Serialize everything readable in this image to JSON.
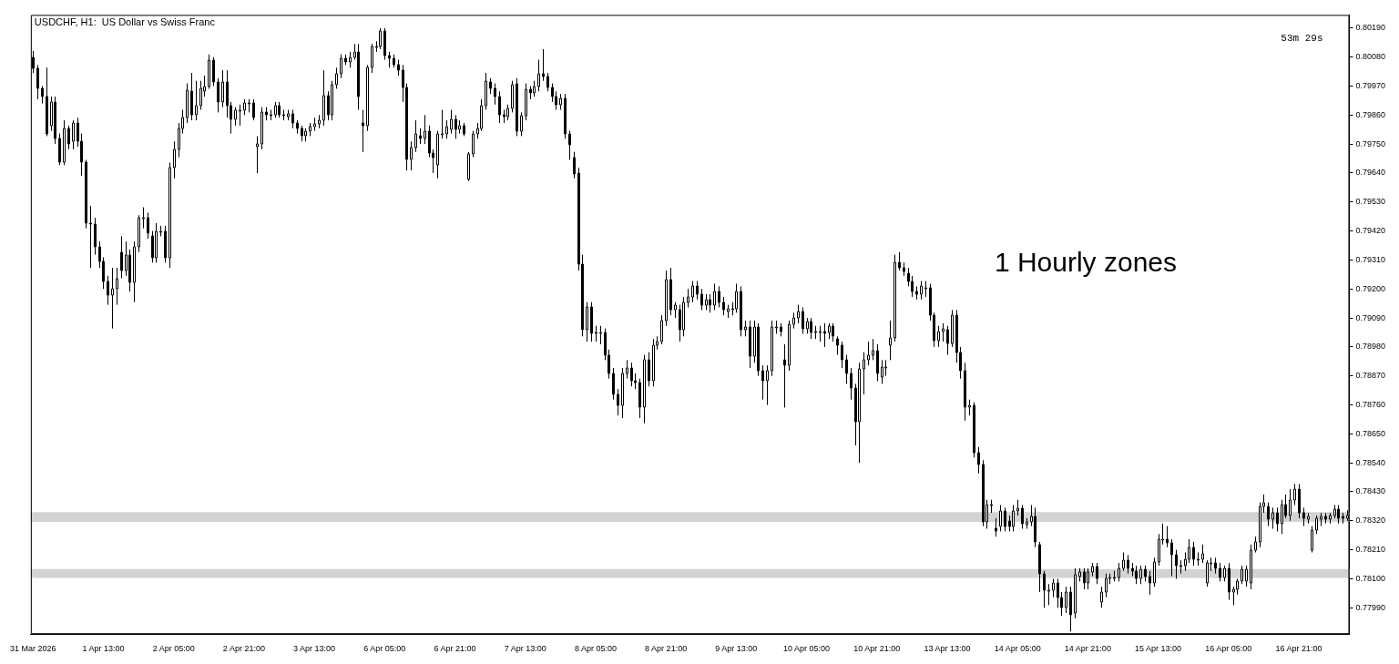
{
  "chart_data": {
    "type": "candlestick",
    "title": "USDCHF, H1:  US Dollar vs Swiss Franc",
    "annotations": [
      "1 Hourly zones",
      "53m 29s"
    ],
    "categories": [
      "31 Mar 2026",
      null,
      null,
      null,
      null,
      null,
      null,
      null,
      null,
      null,
      null,
      null,
      null,
      null,
      null,
      null,
      "1 Apr 13:00",
      null,
      null,
      null,
      null,
      null,
      null,
      null,
      null,
      null,
      null,
      null,
      null,
      null,
      null,
      null,
      "2 Apr 05:00",
      null,
      null,
      null,
      null,
      null,
      null,
      null,
      null,
      null,
      null,
      null,
      null,
      null,
      null,
      null,
      "2 Apr 21:00",
      null,
      null,
      null,
      null,
      null,
      null,
      null,
      null,
      null,
      null,
      null,
      null,
      null,
      null,
      null,
      "3 Apr 13:00",
      null,
      null,
      null,
      null,
      null,
      null,
      null,
      null,
      null,
      null,
      null,
      null,
      null,
      null,
      null,
      "6 Apr 05:00",
      null,
      null,
      null,
      null,
      null,
      null,
      null,
      null,
      null,
      null,
      null,
      null,
      null,
      null,
      null,
      "6 Apr 21:00",
      null,
      null,
      null,
      null,
      null,
      null,
      null,
      null,
      null,
      null,
      null,
      null,
      null,
      null,
      null,
      "7 Apr 13:00",
      null,
      null,
      null,
      null,
      null,
      null,
      null,
      null,
      null,
      null,
      null,
      null,
      null,
      null,
      null,
      "8 Apr 05:00",
      null,
      null,
      null,
      null,
      null,
      null,
      null,
      null,
      null,
      null,
      null,
      null,
      null,
      null,
      null,
      "8 Apr 21:00",
      null,
      null,
      null,
      null,
      null,
      null,
      null,
      null,
      null,
      null,
      null,
      null,
      null,
      null,
      null,
      "9 Apr 13:00",
      null,
      null,
      null,
      null,
      null,
      null,
      null,
      null,
      null,
      null,
      null,
      null,
      null,
      null,
      null,
      "10 Apr 05:00",
      null,
      null,
      null,
      null,
      null,
      null,
      null,
      null,
      null,
      null,
      null,
      null,
      null,
      null,
      null,
      "10 Apr 21:00",
      null,
      null,
      null,
      null,
      null,
      null,
      null,
      null,
      null,
      null,
      null,
      null,
      null,
      null,
      null,
      "13 Apr 13:00",
      null,
      null,
      null,
      null,
      null,
      null,
      null,
      null,
      null,
      null,
      null,
      null,
      null,
      null,
      null,
      "14 Apr 05:00",
      null,
      null,
      null,
      null,
      null,
      null,
      null,
      null,
      null,
      null,
      null,
      null,
      null,
      null,
      null,
      "14 Apr 21:00",
      null,
      null,
      null,
      null,
      null,
      null,
      null,
      null,
      null,
      null,
      null,
      null,
      null,
      null,
      null,
      "15 Apr 13:00",
      null,
      null,
      null,
      null,
      null,
      null,
      null,
      null,
      null,
      null,
      null,
      null,
      null,
      null,
      null,
      "16 Apr 05:00",
      null,
      null,
      null,
      null,
      null,
      null,
      null,
      null,
      null,
      null,
      null,
      null,
      null,
      null,
      null,
      "16 Apr 21:00",
      null,
      null,
      null,
      null,
      null,
      null,
      null,
      null,
      null,
      null,
      null
    ],
    "ohlc": [
      [
        0.8008,
        0.80103,
        0.8002,
        0.80037
      ],
      [
        0.80037,
        0.8005,
        0.7992,
        0.7996
      ],
      [
        0.7996,
        0.7997,
        0.79904,
        0.7993
      ],
      [
        0.7993,
        0.8004,
        0.7978,
        0.7979
      ],
      [
        0.7982,
        0.7993,
        0.798,
        0.7991
      ],
      [
        0.7991,
        0.7993,
        0.7975,
        0.7977
      ],
      [
        0.7977,
        0.7979,
        0.7967,
        0.7968
      ],
      [
        0.7968,
        0.7984,
        0.7967,
        0.7981
      ],
      [
        0.7981,
        0.7982,
        0.7973,
        0.7975
      ],
      [
        0.7976,
        0.7984,
        0.7973,
        0.7983
      ],
      [
        0.7983,
        0.7985,
        0.7974,
        0.7976
      ],
      [
        0.7976,
        0.7979,
        0.7963,
        0.7968
      ],
      [
        0.7968,
        0.7969,
        0.7943,
        0.7945
      ],
      [
        0.7945,
        0.79515,
        0.7928,
        0.79445
      ],
      [
        0.79445,
        0.7947,
        0.7933,
        0.7936
      ],
      [
        0.7936,
        0.7938,
        0.7928,
        0.79305
      ],
      [
        0.79305,
        0.7932,
        0.792,
        0.7923
      ],
      [
        0.7923,
        0.7925,
        0.7914,
        0.79175
      ],
      [
        0.79175,
        0.7928,
        0.7905,
        0.792
      ],
      [
        0.792,
        0.7928,
        0.7914,
        0.7924
      ],
      [
        0.7934,
        0.794,
        0.7924,
        0.7927
      ],
      [
        0.7927,
        0.7938,
        0.7925,
        0.7933
      ],
      [
        0.7933,
        0.7935,
        0.7919,
        0.79225
      ],
      [
        0.79225,
        0.7938,
        0.7915,
        0.7936
      ],
      [
        0.7936,
        0.7948,
        0.7934,
        0.7947
      ],
      [
        0.7947,
        0.7951,
        0.7943,
        0.7947
      ],
      [
        0.7947,
        0.7949,
        0.7939,
        0.7941
      ],
      [
        0.794,
        0.7942,
        0.793,
        0.7932
      ],
      [
        0.7932,
        0.7945,
        0.793,
        0.7942
      ],
      [
        0.7942,
        0.7944,
        0.794,
        0.7942
      ],
      [
        0.7942,
        0.7944,
        0.793,
        0.7932
      ],
      [
        0.7932,
        0.7968,
        0.7928,
        0.7966
      ],
      [
        0.7966,
        0.7976,
        0.7962,
        0.7973
      ],
      [
        0.7973,
        0.7983,
        0.797,
        0.7981
      ],
      [
        0.7981,
        0.7988,
        0.7979,
        0.7985
      ],
      [
        0.7985,
        0.7998,
        0.7983,
        0.79955
      ],
      [
        0.7995,
        0.8002,
        0.7984,
        0.7986
      ],
      [
        0.7986,
        0.7999,
        0.7984,
        0.79895
      ],
      [
        0.79895,
        0.7999,
        0.7988,
        0.7996
      ],
      [
        0.7995,
        0.8001,
        0.7993,
        0.7997
      ],
      [
        0.7997,
        0.8009,
        0.7996,
        0.80068
      ],
      [
        0.80068,
        0.8008,
        0.7997,
        0.79985
      ],
      [
        0.79985,
        0.8,
        0.7987,
        0.7991
      ],
      [
        0.7991,
        0.8003,
        0.7989,
        0.79985
      ],
      [
        0.79985,
        0.8003,
        0.7985,
        0.79895
      ],
      [
        0.79895,
        0.7991,
        0.7979,
        0.79845
      ],
      [
        0.79845,
        0.7989,
        0.7982,
        0.7988
      ],
      [
        0.7988,
        0.799,
        0.7982,
        0.7988
      ],
      [
        0.7988,
        0.7992,
        0.7986,
        0.79905
      ],
      [
        0.79905,
        0.7992,
        0.7987,
        0.79905
      ],
      [
        0.79905,
        0.7992,
        0.7984,
        0.7985
      ],
      [
        0.7974,
        0.7978,
        0.7964,
        0.7975
      ],
      [
        0.7975,
        0.7989,
        0.7973,
        0.7987
      ],
      [
        0.7987,
        0.7989,
        0.7984,
        0.7986
      ],
      [
        0.7986,
        0.7988,
        0.7984,
        0.7986
      ],
      [
        0.7986,
        0.7991,
        0.7985,
        0.79895
      ],
      [
        0.79895,
        0.7991,
        0.7985,
        0.7986
      ],
      [
        0.7986,
        0.7988,
        0.7984,
        0.7986
      ],
      [
        0.79855,
        0.7988,
        0.7984,
        0.79865
      ],
      [
        0.79865,
        0.7988,
        0.7981,
        0.7983
      ],
      [
        0.7983,
        0.7984,
        0.7979,
        0.7981
      ],
      [
        0.7981,
        0.7982,
        0.7976,
        0.7978
      ],
      [
        0.7978,
        0.7981,
        0.7976,
        0.798
      ],
      [
        0.798,
        0.7983,
        0.7978,
        0.79815
      ],
      [
        0.79815,
        0.7985,
        0.798,
        0.79825
      ],
      [
        0.79825,
        0.7986,
        0.7981,
        0.7984
      ],
      [
        0.7984,
        0.8003,
        0.7982,
        0.79935
      ],
      [
        0.79935,
        0.7995,
        0.7984,
        0.7986
      ],
      [
        0.7986,
        0.7999,
        0.7984,
        0.79975
      ],
      [
        0.79975,
        0.8004,
        0.7996,
        0.80015
      ],
      [
        0.80015,
        0.8009,
        0.8,
        0.80075
      ],
      [
        0.80075,
        0.8009,
        0.8005,
        0.8006
      ],
      [
        0.8006,
        0.801,
        0.8004,
        0.8008
      ],
      [
        0.8008,
        0.8013,
        0.8007,
        0.801
      ],
      [
        0.801,
        0.8013,
        0.7988,
        0.7993
      ],
      [
        0.7983,
        0.7988,
        0.7972,
        0.7982
      ],
      [
        0.7982,
        0.8005,
        0.798,
        0.8004
      ],
      [
        0.8004,
        0.8013,
        0.8002,
        0.8012
      ],
      [
        0.8012,
        0.8014,
        0.801,
        0.8012
      ],
      [
        0.8012,
        0.8019,
        0.8011,
        0.8018
      ],
      [
        0.8018,
        0.8019,
        0.8007,
        0.80087
      ],
      [
        0.80087,
        0.801,
        0.8004,
        0.80075
      ],
      [
        0.80075,
        0.8009,
        0.8004,
        0.80052
      ],
      [
        0.80052,
        0.8007,
        0.8001,
        0.8003
      ],
      [
        0.8003,
        0.8005,
        0.7991,
        0.79965
      ],
      [
        0.79965,
        0.7998,
        0.7965,
        0.79693
      ],
      [
        0.79693,
        0.7976,
        0.7965,
        0.79737
      ],
      [
        0.79737,
        0.7984,
        0.7972,
        0.79787
      ],
      [
        0.7978,
        0.7981,
        0.7975,
        0.7977
      ],
      [
        0.7977,
        0.7986,
        0.7975,
        0.798
      ],
      [
        0.798,
        0.7982,
        0.797,
        0.79717
      ],
      [
        0.79717,
        0.7973,
        0.7964,
        0.797
      ],
      [
        0.7967,
        0.798,
        0.7962,
        0.7979
      ],
      [
        0.7979,
        0.7988,
        0.7977,
        0.7979
      ],
      [
        0.7979,
        0.7984,
        0.7977,
        0.79815
      ],
      [
        0.79805,
        0.7988,
        0.7979,
        0.79845
      ],
      [
        0.79845,
        0.7986,
        0.7977,
        0.79805
      ],
      [
        0.79805,
        0.7984,
        0.7979,
        0.7982
      ],
      [
        0.7982,
        0.7983,
        0.7978,
        0.7979
      ],
      [
        0.79616,
        0.7972,
        0.7961,
        0.79714
      ],
      [
        0.79714,
        0.798,
        0.797,
        0.7979
      ],
      [
        0.7979,
        0.7983,
        0.7977,
        0.7981
      ],
      [
        0.7981,
        0.7992,
        0.798,
        0.79894
      ],
      [
        0.79894,
        0.8002,
        0.7988,
        0.7999
      ],
      [
        0.79985,
        0.8,
        0.7994,
        0.7996
      ],
      [
        0.7996,
        0.7998,
        0.799,
        0.7993
      ],
      [
        0.7993,
        0.7995,
        0.7983,
        0.7986
      ],
      [
        0.7986,
        0.7988,
        0.7983,
        0.79855
      ],
      [
        0.79855,
        0.799,
        0.7984,
        0.79885
      ],
      [
        0.79885,
        0.7999,
        0.7987,
        0.79975
      ],
      [
        0.7998,
        0.8,
        0.7978,
        0.798
      ],
      [
        0.798,
        0.7987,
        0.7978,
        0.79857
      ],
      [
        0.79857,
        0.7998,
        0.7984,
        0.79957
      ],
      [
        0.79957,
        0.7997,
        0.7992,
        0.79945
      ],
      [
        0.79945,
        0.7999,
        0.7993,
        0.7997
      ],
      [
        0.7997,
        0.8007,
        0.7995,
        0.80017
      ],
      [
        0.80017,
        0.8011,
        0.7999,
        0.80005
      ],
      [
        0.80005,
        0.8002,
        0.7995,
        0.79965
      ],
      [
        0.79965,
        0.7998,
        0.7991,
        0.7993
      ],
      [
        0.7993,
        0.7995,
        0.7988,
        0.799
      ],
      [
        0.799,
        0.7994,
        0.7988,
        0.79925
      ],
      [
        0.79925,
        0.7994,
        0.7977,
        0.7979
      ],
      [
        0.7979,
        0.798,
        0.7969,
        0.79747
      ],
      [
        0.797,
        0.7972,
        0.7962,
        0.79635
      ],
      [
        0.7964,
        0.7966,
        0.7927,
        0.79295
      ],
      [
        0.79295,
        0.7933,
        0.7902,
        0.79045
      ],
      [
        0.79045,
        0.7915,
        0.79,
        0.7913
      ],
      [
        0.7913,
        0.7915,
        0.79,
        0.7903
      ],
      [
        0.7903,
        0.7906,
        0.79,
        0.79035
      ],
      [
        0.79035,
        0.7906,
        0.7899,
        0.79035
      ],
      [
        0.79035,
        0.7905,
        0.7893,
        0.7895
      ],
      [
        0.7895,
        0.7897,
        0.7886,
        0.7888
      ],
      [
        0.7888,
        0.789,
        0.7878,
        0.788
      ],
      [
        0.788,
        0.7882,
        0.7872,
        0.7876
      ],
      [
        0.7876,
        0.789,
        0.7871,
        0.7888
      ],
      [
        0.7888,
        0.7893,
        0.7886,
        0.789
      ],
      [
        0.789,
        0.7892,
        0.7883,
        0.7885
      ],
      [
        0.7885,
        0.7888,
        0.7882,
        0.78845
      ],
      [
        0.78845,
        0.7886,
        0.7871,
        0.7875
      ],
      [
        0.7875,
        0.7895,
        0.7869,
        0.7893
      ],
      [
        0.7893,
        0.7896,
        0.7883,
        0.7885
      ],
      [
        0.7885,
        0.7901,
        0.7883,
        0.78985
      ],
      [
        0.78985,
        0.7902,
        0.7897,
        0.79
      ],
      [
        0.79,
        0.791,
        0.7899,
        0.7908
      ],
      [
        0.7908,
        0.7927,
        0.7906,
        0.79235
      ],
      [
        0.79235,
        0.7928,
        0.791,
        0.7912
      ],
      [
        0.7912,
        0.7915,
        0.7909,
        0.7914
      ],
      [
        0.7912,
        0.7914,
        0.79,
        0.79045
      ],
      [
        0.79045,
        0.7917,
        0.7902,
        0.7915
      ],
      [
        0.7915,
        0.792,
        0.7913,
        0.7917
      ],
      [
        0.7917,
        0.7923,
        0.7915,
        0.7921
      ],
      [
        0.7921,
        0.7923,
        0.7916,
        0.7918
      ],
      [
        0.7918,
        0.792,
        0.7912,
        0.7914
      ],
      [
        0.7914,
        0.7918,
        0.7912,
        0.7916
      ],
      [
        0.7916,
        0.7918,
        0.7911,
        0.7914
      ],
      [
        0.7914,
        0.7922,
        0.7912,
        0.7919
      ],
      [
        0.7919,
        0.7921,
        0.7913,
        0.7915
      ],
      [
        0.7915,
        0.7917,
        0.791,
        0.7912
      ],
      [
        0.79115,
        0.7914,
        0.7909,
        0.79125
      ],
      [
        0.79125,
        0.7915,
        0.791,
        0.79125
      ],
      [
        0.79125,
        0.7922,
        0.7911,
        0.7919
      ],
      [
        0.7919,
        0.7921,
        0.7902,
        0.79045
      ],
      [
        0.79045,
        0.7908,
        0.7902,
        0.79055
      ],
      [
        0.79055,
        0.7908,
        0.789,
        0.78945
      ],
      [
        0.78945,
        0.7908,
        0.7892,
        0.79055
      ],
      [
        0.79055,
        0.7907,
        0.7887,
        0.7889
      ],
      [
        0.7889,
        0.7891,
        0.7878,
        0.7885
      ],
      [
        0.7885,
        0.7891,
        0.7876,
        0.7889
      ],
      [
        0.7889,
        0.7908,
        0.7887,
        0.79055
      ],
      [
        0.79055,
        0.7908,
        0.7903,
        0.79055
      ],
      [
        0.79055,
        0.7907,
        0.7902,
        0.7904
      ],
      [
        0.7893,
        0.7899,
        0.7875,
        0.7891
      ],
      [
        0.7891,
        0.7908,
        0.7889,
        0.79065
      ],
      [
        0.79065,
        0.7911,
        0.7905,
        0.7909
      ],
      [
        0.7909,
        0.7914,
        0.7907,
        0.79115
      ],
      [
        0.79115,
        0.7913,
        0.7903,
        0.7905
      ],
      [
        0.7905,
        0.7909,
        0.7903,
        0.79075
      ],
      [
        0.79075,
        0.7909,
        0.7901,
        0.79035
      ],
      [
        0.79035,
        0.7906,
        0.7901,
        0.7904
      ],
      [
        0.7904,
        0.7906,
        0.79,
        0.7904
      ],
      [
        0.7904,
        0.7907,
        0.7898,
        0.7903
      ],
      [
        0.79035,
        0.7907,
        0.7901,
        0.7906
      ],
      [
        0.7906,
        0.7907,
        0.79,
        0.7902
      ],
      [
        0.7901,
        0.7902,
        0.7895,
        0.78985
      ],
      [
        0.78985,
        0.79,
        0.789,
        0.7893
      ],
      [
        0.7893,
        0.7895,
        0.7884,
        0.7888
      ],
      [
        0.7888,
        0.789,
        0.7878,
        0.78825
      ],
      [
        0.78825,
        0.7884,
        0.78606,
        0.78695
      ],
      [
        0.78695,
        0.7892,
        0.7854,
        0.78895
      ],
      [
        0.78895,
        0.7896,
        0.788,
        0.7893
      ],
      [
        0.7893,
        0.79,
        0.7891,
        0.7895
      ],
      [
        0.7895,
        0.7901,
        0.7893,
        0.78965
      ],
      [
        0.78965,
        0.7899,
        0.7885,
        0.7888
      ],
      [
        0.78865,
        0.7893,
        0.7884,
        0.78905
      ],
      [
        0.78905,
        0.7893,
        0.7887,
        0.78905
      ],
      [
        0.78985,
        0.7908,
        0.7893,
        0.79015
      ],
      [
        0.79015,
        0.7933,
        0.79,
        0.793
      ],
      [
        0.793,
        0.7934,
        0.7927,
        0.7928
      ],
      [
        0.7928,
        0.793,
        0.7925,
        0.79265
      ],
      [
        0.7926,
        0.7928,
        0.7921,
        0.7923
      ],
      [
        0.7923,
        0.7925,
        0.7917,
        0.7919
      ],
      [
        0.7919,
        0.7921,
        0.7916,
        0.7918
      ],
      [
        0.7918,
        0.7923,
        0.7916,
        0.7921
      ],
      [
        0.79205,
        0.7923,
        0.7917,
        0.79205
      ],
      [
        0.79205,
        0.7922,
        0.7908,
        0.791
      ],
      [
        0.791,
        0.7911,
        0.7898,
        0.79005
      ],
      [
        0.79005,
        0.7906,
        0.7898,
        0.7904
      ],
      [
        0.7904,
        0.7907,
        0.79,
        0.7905
      ],
      [
        0.79045,
        0.7906,
        0.7895,
        0.78995
      ],
      [
        0.78995,
        0.7912,
        0.7898,
        0.791
      ],
      [
        0.791,
        0.7912,
        0.7892,
        0.7896
      ],
      [
        0.7896,
        0.7898,
        0.7886,
        0.7889
      ],
      [
        0.7889,
        0.7892,
        0.787,
        0.7875
      ],
      [
        0.7875,
        0.7878,
        0.7872,
        0.7876
      ],
      [
        0.7876,
        0.7877,
        0.7856,
        0.7858
      ],
      [
        0.7858,
        0.786,
        0.785,
        0.78535
      ],
      [
        0.78535,
        0.7855,
        0.783,
        0.78316
      ],
      [
        0.78316,
        0.784,
        0.7829,
        0.7838
      ],
      [
        0.7838,
        0.784,
        0.7835,
        0.7838
      ],
      [
        0.7829,
        0.7833,
        0.7826,
        0.7828
      ],
      [
        0.783,
        0.7838,
        0.7828,
        0.78357
      ],
      [
        0.78357,
        0.7837,
        0.7828,
        0.783
      ],
      [
        0.7832,
        0.7834,
        0.7828,
        0.783
      ],
      [
        0.783,
        0.7838,
        0.7828,
        0.78357
      ],
      [
        0.78357,
        0.784,
        0.7834,
        0.78367
      ],
      [
        0.78367,
        0.7838,
        0.7829,
        0.7831
      ],
      [
        0.78305,
        0.7833,
        0.7829,
        0.78315
      ],
      [
        0.78315,
        0.7838,
        0.783,
        0.78335
      ],
      [
        0.78335,
        0.7837,
        0.7822,
        0.7824
      ],
      [
        0.7823,
        0.7824,
        0.7805,
        0.7812
      ],
      [
        0.7812,
        0.7813,
        0.7799,
        0.78055
      ],
      [
        0.78055,
        0.7808,
        0.78,
        0.78055
      ],
      [
        0.78055,
        0.781,
        0.7803,
        0.78085
      ],
      [
        0.78085,
        0.781,
        0.7799,
        0.7803
      ],
      [
        0.7803,
        0.7805,
        0.7796,
        0.7799
      ],
      [
        0.7799,
        0.7807,
        0.7797,
        0.7805
      ],
      [
        0.7805,
        0.7807,
        0.779,
        0.77965
      ],
      [
        0.7797,
        0.7814,
        0.7795,
        0.78115
      ],
      [
        0.7811,
        0.7814,
        0.7809,
        0.78125
      ],
      [
        0.78125,
        0.7814,
        0.7806,
        0.78085
      ],
      [
        0.78085,
        0.7814,
        0.7806,
        0.78125
      ],
      [
        0.78125,
        0.7816,
        0.7811,
        0.78145
      ],
      [
        0.78145,
        0.7816,
        0.7808,
        0.781
      ],
      [
        0.7801,
        0.7807,
        0.7799,
        0.7805
      ],
      [
        0.7805,
        0.7812,
        0.7803,
        0.781
      ],
      [
        0.781,
        0.7812,
        0.7808,
        0.78105
      ],
      [
        0.78105,
        0.7813,
        0.7809,
        0.78105
      ],
      [
        0.78105,
        0.7816,
        0.7809,
        0.7814
      ],
      [
        0.7814,
        0.782,
        0.7813,
        0.7817
      ],
      [
        0.7817,
        0.7819,
        0.7812,
        0.7814
      ],
      [
        0.7814,
        0.7816,
        0.7811,
        0.7813
      ],
      [
        0.7813,
        0.7815,
        0.7808,
        0.781
      ],
      [
        0.781,
        0.7815,
        0.7808,
        0.78135
      ],
      [
        0.78135,
        0.7815,
        0.7809,
        0.7811
      ],
      [
        0.7811,
        0.7813,
        0.7804,
        0.78085
      ],
      [
        0.78085,
        0.7818,
        0.7807,
        0.78165
      ],
      [
        0.78165,
        0.7827,
        0.7815,
        0.7825
      ],
      [
        0.7825,
        0.7831,
        0.7823,
        0.7825
      ],
      [
        0.7825,
        0.783,
        0.7822,
        0.78235
      ],
      [
        0.78235,
        0.7825,
        0.7811,
        0.7819
      ],
      [
        0.7819,
        0.7821,
        0.781,
        0.7815
      ],
      [
        0.7815,
        0.7817,
        0.7812,
        0.7815
      ],
      [
        0.7815,
        0.782,
        0.7813,
        0.78175
      ],
      [
        0.78175,
        0.7825,
        0.7816,
        0.7822
      ],
      [
        0.7822,
        0.7824,
        0.7815,
        0.78175
      ],
      [
        0.78175,
        0.782,
        0.7815,
        0.78175
      ],
      [
        0.78175,
        0.7823,
        0.7816,
        0.78195
      ],
      [
        0.78085,
        0.7817,
        0.7807,
        0.7816
      ],
      [
        0.7816,
        0.7818,
        0.7813,
        0.7816
      ],
      [
        0.7816,
        0.7818,
        0.7812,
        0.7814
      ],
      [
        0.7814,
        0.7816,
        0.7809,
        0.78105
      ],
      [
        0.78105,
        0.7815,
        0.7809,
        0.7814
      ],
      [
        0.7814,
        0.7816,
        0.7802,
        0.7805
      ],
      [
        0.7805,
        0.7807,
        0.78,
        0.7806
      ],
      [
        0.7806,
        0.781,
        0.7804,
        0.7809
      ],
      [
        0.7809,
        0.7815,
        0.7808,
        0.78135
      ],
      [
        0.7809,
        0.7815,
        0.7807,
        0.78135
      ],
      [
        0.78085,
        0.7823,
        0.7806,
        0.7821
      ],
      [
        0.7821,
        0.7826,
        0.782,
        0.7824
      ],
      [
        0.7824,
        0.7839,
        0.7822,
        0.78373
      ],
      [
        0.78373,
        0.7842,
        0.7835,
        0.7839
      ],
      [
        0.78373,
        0.7839,
        0.783,
        0.78327
      ],
      [
        0.78327,
        0.7837,
        0.7829,
        0.7835
      ],
      [
        0.7835,
        0.7837,
        0.7828,
        0.7831
      ],
      [
        0.7831,
        0.784,
        0.7827,
        0.7838
      ],
      [
        0.7838,
        0.7842,
        0.7833,
        0.7834
      ],
      [
        0.7834,
        0.7844,
        0.7832,
        0.784
      ],
      [
        0.784,
        0.7846,
        0.7838,
        0.7844
      ],
      [
        0.7844,
        0.7846,
        0.7833,
        0.7835
      ],
      [
        0.7835,
        0.7837,
        0.783,
        0.7833
      ],
      [
        0.78325,
        0.7835,
        0.7831,
        0.78335
      ],
      [
        0.7821,
        0.783,
        0.782,
        0.78285
      ],
      [
        0.78285,
        0.7834,
        0.7827,
        0.7833
      ],
      [
        0.78325,
        0.7835,
        0.783,
        0.78335
      ],
      [
        0.78335,
        0.7835,
        0.7831,
        0.78325
      ],
      [
        0.78325,
        0.7835,
        0.7831,
        0.7834
      ],
      [
        0.7834,
        0.7838,
        0.7833,
        0.78365
      ],
      [
        0.78365,
        0.7838,
        0.7831,
        0.7833
      ],
      [
        0.78335,
        0.7835,
        0.7831,
        0.7833
      ],
      [
        0.7833,
        0.7836,
        0.7832,
        0.7834
      ]
    ],
    "ylim": [
      0.7789,
      0.8024
    ],
    "yticks": [
      {
        "value": 0.7799,
        "label": "0.77990"
      },
      {
        "value": 0.781,
        "label": "0.78100"
      },
      {
        "value": 0.7821,
        "label": "0.78210"
      },
      {
        "value": 0.7832,
        "label": "0.78320"
      },
      {
        "value": 0.7843,
        "label": "0.78430"
      },
      {
        "value": 0.7854,
        "label": "0.78540"
      },
      {
        "value": 0.7865,
        "label": "0.78650"
      },
      {
        "value": 0.7876,
        "label": "0.78760"
      },
      {
        "value": 0.7887,
        "label": "0.78870"
      },
      {
        "value": 0.7898,
        "label": "0.78980"
      },
      {
        "value": 0.7909,
        "label": "0.79090"
      },
      {
        "value": 0.792,
        "label": "0.79200"
      },
      {
        "value": 0.7931,
        "label": "0.79310"
      },
      {
        "value": 0.7942,
        "label": "0.79420"
      },
      {
        "value": 0.7953,
        "label": "0.79530"
      },
      {
        "value": 0.7964,
        "label": "0.79640"
      },
      {
        "value": 0.7975,
        "label": "0.79750"
      },
      {
        "value": 0.7986,
        "label": "0.79860"
      },
      {
        "value": 0.7997,
        "label": "0.79970"
      },
      {
        "value": 0.8008,
        "label": "0.80080"
      },
      {
        "value": 0.8019,
        "label": "0.80190"
      }
    ],
    "bands": [
      {
        "axis": "y",
        "from": 0.78316,
        "to": 0.78353,
        "color": "#d3d3d3"
      },
      {
        "axis": "y",
        "from": 0.78103,
        "to": 0.78137,
        "color": "#d3d3d3"
      }
    ]
  }
}
